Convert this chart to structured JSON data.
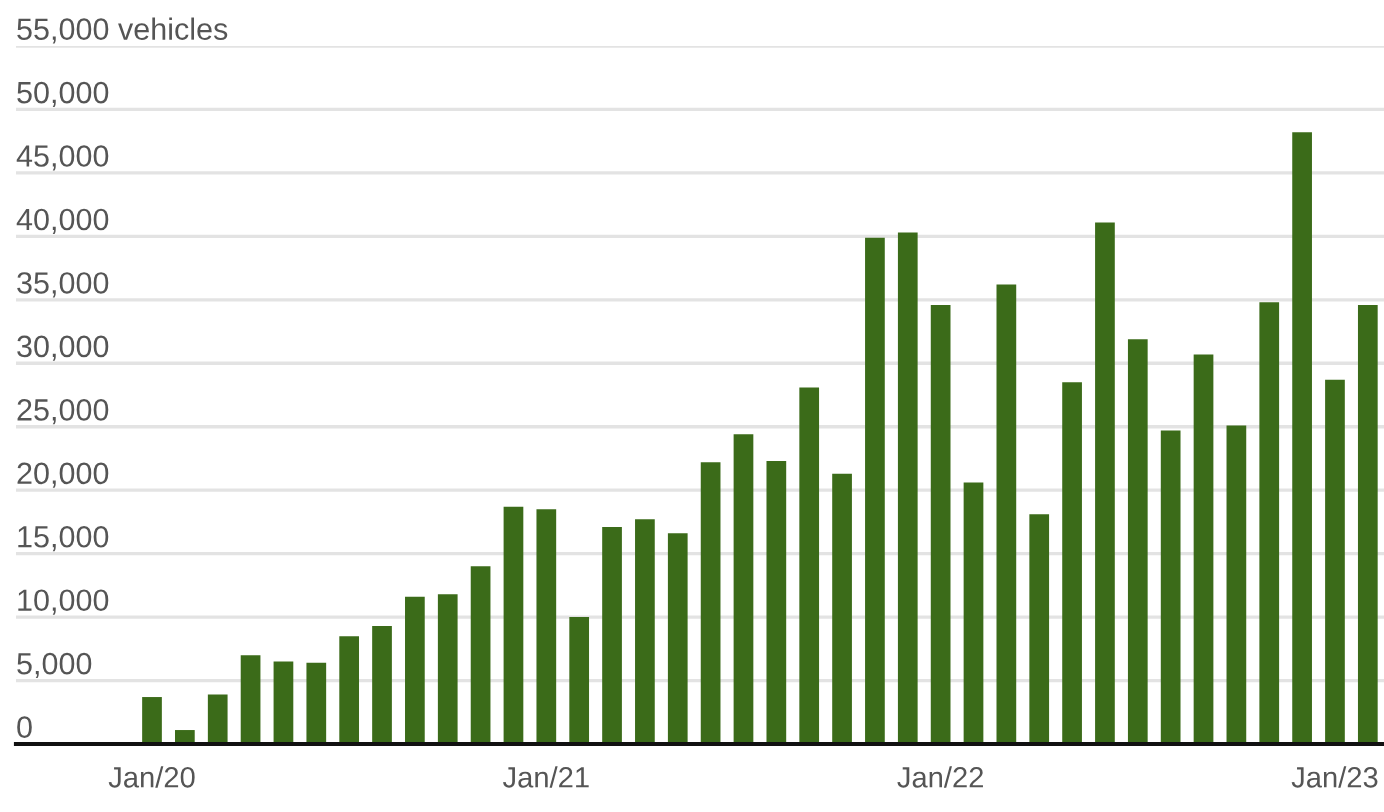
{
  "chart_data": {
    "type": "bar",
    "categories": [
      "Jan/20",
      null,
      null,
      null,
      null,
      null,
      null,
      null,
      null,
      null,
      null,
      null,
      "Jan/21",
      null,
      null,
      null,
      null,
      null,
      null,
      null,
      null,
      null,
      null,
      null,
      "Jan/22",
      null,
      null,
      null,
      null,
      null,
      null,
      null,
      null,
      null,
      null,
      null,
      "Jan/23",
      null
    ],
    "values": [
      3700,
      1100,
      3900,
      7000,
      6500,
      6400,
      8500,
      9300,
      11600,
      11800,
      14000,
      18700,
      18500,
      10000,
      17100,
      17700,
      16600,
      22200,
      24400,
      22300,
      28100,
      21300,
      39900,
      40300,
      34600,
      20600,
      36200,
      18100,
      28500,
      41100,
      31900,
      24700,
      30700,
      25100,
      34800,
      48200,
      28700,
      34600
    ],
    "color": "#3b6b19",
    "ylim": [
      0,
      55000
    ],
    "yticks": [
      {
        "value": 0,
        "label": "0"
      },
      {
        "value": 5000,
        "label": "5,000"
      },
      {
        "value": 10000,
        "label": "10,000"
      },
      {
        "value": 15000,
        "label": "15,000"
      },
      {
        "value": 20000,
        "label": "20,000"
      },
      {
        "value": 25000,
        "label": "25,000"
      },
      {
        "value": 30000,
        "label": "30,000"
      },
      {
        "value": 35000,
        "label": "35,000"
      },
      {
        "value": 40000,
        "label": "40,000"
      },
      {
        "value": 45000,
        "label": "45,000"
      },
      {
        "value": 50000,
        "label": "50,000"
      },
      {
        "value": 55000,
        "label": "55,000 vehicles"
      }
    ],
    "grid": "y"
  }
}
